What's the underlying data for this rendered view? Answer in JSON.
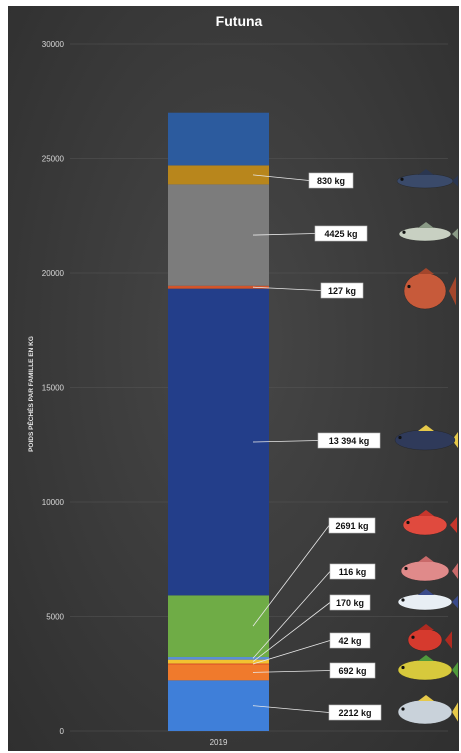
{
  "chart_data": {
    "type": "bar",
    "stacked": true,
    "title": "Futuna",
    "xlabel": "",
    "ylabel": "POIDS PÊCHÉS PAR FAMILLE EN KG",
    "categories": [
      "2019"
    ],
    "ylim": [
      0,
      30000
    ],
    "yticks": [
      0,
      5000,
      10000,
      15000,
      20000,
      25000,
      30000
    ],
    "grid": true,
    "legend": "none",
    "series": [
      {
        "label": "2212 kg",
        "value": 2212,
        "color": "#3f7fd9",
        "fish_icon": "trevally-fish-icon"
      },
      {
        "label": "692 kg",
        "value": 692,
        "color": "#f07a2c",
        "fish_icon": "mahi-mahi-fish-icon"
      },
      {
        "label": "42 kg",
        "value": 42,
        "color": "#d64a2a",
        "fish_icon": "red-soldierfish-icon"
      },
      {
        "label": "170 kg",
        "value": 170,
        "color": "#f2c230",
        "fish_icon": "marlin-fish-icon"
      },
      {
        "label": "116 kg",
        "value": 116,
        "color": "#5b8fd6",
        "fish_icon": "pink-snapper-fish-icon"
      },
      {
        "label": "2691 kg",
        "value": 2691,
        "color": "#6fac46",
        "fish_icon": "red-snapper-fish-icon"
      },
      {
        "label": "13 394 kg",
        "value": 13394,
        "color": "#233e8a",
        "fish_icon": "tuna-fish-icon"
      },
      {
        "label": "127 kg",
        "value": 127,
        "color": "#d2542a",
        "fish_icon": "grouper-fish-icon"
      },
      {
        "label": "4425 kg",
        "value": 4425,
        "color": "#7c7c7c",
        "fish_icon": "barracuda-fish-icon"
      },
      {
        "label": "830 kg",
        "value": 830,
        "color": "#b8861c",
        "fish_icon": "swordfish-fish-icon"
      },
      {
        "label": "",
        "value": 2300,
        "color": "#2c5b9e",
        "fish_icon": ""
      }
    ]
  }
}
